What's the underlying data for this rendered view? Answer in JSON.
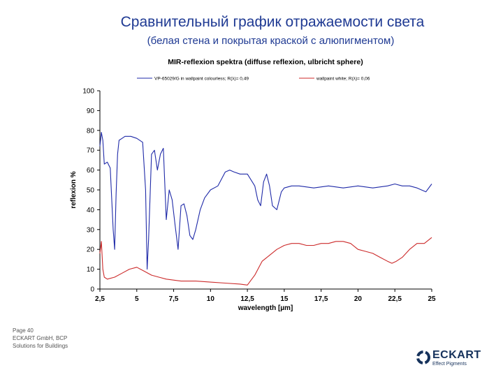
{
  "slide": {
    "title": "Сравнительный график отражаемости света",
    "subtitle": "(белая стена и покрытая краской с алюпигментом)",
    "footer": [
      "Page 40",
      "ECKART GmbH, BCP",
      "Solutions for Buildings"
    ],
    "logo": {
      "name": "ECKART",
      "tagline": "Effect Pigments",
      "color": "#16325c"
    }
  },
  "chart_data": {
    "type": "line",
    "title": "MIR-reflexion spektra (diffuse reflexion, ulbricht sphere)",
    "xlabel": "wavelength [µm]",
    "ylabel": "reflexion %",
    "xlim": [
      2.5,
      25
    ],
    "ylim": [
      0,
      100
    ],
    "xticks": [
      "2,5",
      "5",
      "7,5",
      "10",
      "12,5",
      "15",
      "17,5",
      "20",
      "22,5",
      "25"
    ],
    "yticks": [
      "0",
      "10",
      "20",
      "30",
      "40",
      "50",
      "60",
      "70",
      "80",
      "90",
      "100"
    ],
    "grid": false,
    "legend_position": "top",
    "series": [
      {
        "name": "VP-65029/G in wallpaint colourless; R(λ)= 0,49",
        "color": "#1f2aa8",
        "x": [
          2.5,
          2.6,
          2.7,
          2.8,
          3.0,
          3.2,
          3.4,
          3.5,
          3.6,
          3.7,
          3.8,
          4.0,
          4.2,
          4.4,
          4.6,
          5.0,
          5.4,
          5.6,
          5.7,
          5.8,
          6.0,
          6.2,
          6.4,
          6.6,
          6.8,
          7.0,
          7.2,
          7.4,
          7.6,
          7.8,
          8.0,
          8.2,
          8.4,
          8.6,
          8.8,
          9.0,
          9.3,
          9.6,
          10.0,
          10.5,
          11.0,
          11.3,
          11.6,
          12.0,
          12.5,
          13.0,
          13.2,
          13.4,
          13.6,
          13.8,
          14.0,
          14.2,
          14.5,
          14.8,
          15.0,
          15.5,
          16.0,
          17.0,
          18.0,
          19.0,
          20.0,
          21.0,
          22.0,
          22.5,
          23.0,
          23.5,
          24.0,
          24.3,
          24.6,
          25.0
        ],
        "values": [
          72,
          79,
          75,
          63,
          64,
          61,
          30,
          20,
          48,
          68,
          75,
          76,
          77,
          77,
          77,
          76,
          74,
          50,
          10,
          25,
          68,
          70,
          60,
          68,
          71,
          35,
          50,
          45,
          32,
          20,
          42,
          43,
          37,
          27,
          25,
          30,
          40,
          46,
          50,
          52,
          59,
          60,
          59,
          58,
          58,
          52,
          45,
          42,
          54,
          58,
          52,
          42,
          40,
          49,
          51,
          52,
          52,
          51,
          52,
          51,
          52,
          51,
          52,
          53,
          52,
          52,
          51,
          50,
          49,
          53
        ]
      },
      {
        "name": "wallpaint white; R(λ)= 0,06",
        "color": "#cc2a2a",
        "x": [
          2.5,
          2.6,
          2.7,
          2.8,
          3.0,
          3.5,
          4.0,
          4.5,
          5.0,
          5.5,
          6.0,
          6.5,
          7.0,
          8.0,
          9.0,
          10.0,
          11.0,
          12.0,
          12.5,
          13.0,
          13.5,
          14.0,
          14.5,
          15.0,
          15.5,
          16.0,
          16.5,
          17.0,
          17.5,
          18.0,
          18.5,
          19.0,
          19.5,
          20.0,
          20.5,
          21.0,
          21.5,
          22.0,
          22.3,
          22.6,
          23.0,
          23.5,
          24.0,
          24.5,
          25.0
        ],
        "values": [
          18,
          24,
          10,
          6,
          5,
          6,
          8,
          10,
          11,
          9,
          7,
          6,
          5,
          4,
          4,
          3.5,
          3,
          2.5,
          2,
          7,
          14,
          17,
          20,
          22,
          23,
          23,
          22,
          22,
          23,
          23,
          24,
          24,
          23,
          20,
          19,
          18,
          16,
          14,
          13,
          14,
          16,
          20,
          23,
          23,
          26
        ]
      }
    ]
  }
}
